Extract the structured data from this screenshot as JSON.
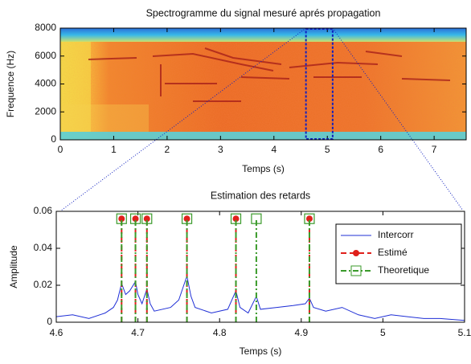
{
  "chart_data": [
    {
      "type": "spectrogram",
      "title": "Spectrogramme du signal mesuré aprés propagation",
      "xlabel": "Temps (s)",
      "ylabel": "Frequence (Hz)",
      "xlim": [
        0,
        7.6
      ],
      "ylim": [
        0,
        8000
      ],
      "xticks": [
        0,
        1,
        2,
        3,
        4,
        5,
        6,
        7
      ],
      "yticks": [
        0,
        2000,
        4000,
        6000,
        8000
      ],
      "grid": false
    },
    {
      "type": "line",
      "title": "Estimation des retards",
      "xlabel": "Temps (s)",
      "ylabel": "Amplitude",
      "xlim": [
        4.6,
        5.1
      ],
      "ylim": [
        0,
        0.06
      ],
      "xticks": [
        4.6,
        4.7,
        4.8,
        4.9,
        5,
        5.1
      ],
      "yticks": [
        0,
        0.02,
        0.04,
        0.06
      ],
      "grid": false,
      "legend": "upper right",
      "series": [
        {
          "name": "Intercorr",
          "color": "#1f2fd6",
          "style": "line",
          "x": [
            4.6,
            4.62,
            4.64,
            4.66,
            4.67,
            4.675,
            4.68,
            4.685,
            4.69,
            4.697,
            4.7,
            4.705,
            4.711,
            4.715,
            4.72,
            4.74,
            4.75,
            4.76,
            4.765,
            4.77,
            4.79,
            4.81,
            4.82,
            4.825,
            4.835,
            4.845,
            4.85,
            4.87,
            4.89,
            4.905,
            4.91,
            4.915,
            4.93,
            4.95,
            4.97,
            4.99,
            5.01,
            5.03,
            5.05,
            5.07,
            5.1
          ],
          "values": [
            0.003,
            0.004,
            0.002,
            0.005,
            0.008,
            0.012,
            0.021,
            0.015,
            0.017,
            0.022,
            0.015,
            0.01,
            0.018,
            0.01,
            0.006,
            0.008,
            0.012,
            0.025,
            0.014,
            0.008,
            0.005,
            0.007,
            0.017,
            0.008,
            0.005,
            0.014,
            0.007,
            0.008,
            0.009,
            0.01,
            0.013,
            0.008,
            0.006,
            0.008,
            0.004,
            0.002,
            0.004,
            0.003,
            0.002,
            0.002,
            0.001
          ]
        },
        {
          "name": "Estimé",
          "color": "#e0201b",
          "style": "stem",
          "marker": "circle",
          "dash": "dashed",
          "x": [
            4.68,
            4.697,
            4.711,
            4.76,
            4.82,
            4.91
          ],
          "values": [
            0.056,
            0.056,
            0.056,
            0.056,
            0.056,
            0.056
          ]
        },
        {
          "name": "Theoretique",
          "color": "#3a9a2a",
          "style": "stem",
          "marker": "square",
          "dash": "dashdot",
          "x": [
            4.68,
            4.697,
            4.711,
            4.76,
            4.82,
            4.845,
            4.91
          ],
          "values": [
            0.056,
            0.056,
            0.056,
            0.056,
            0.056,
            0.056,
            0.056
          ]
        }
      ]
    }
  ]
}
